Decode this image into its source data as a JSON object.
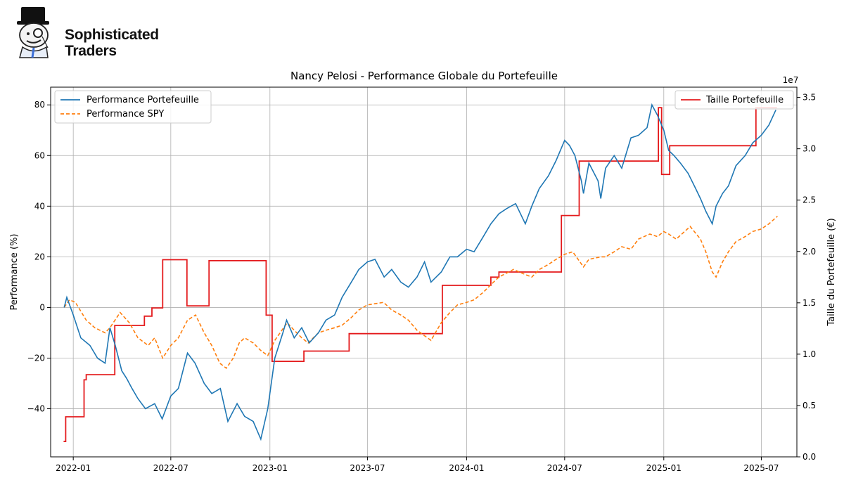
{
  "brand": {
    "line1": "Sophisticated",
    "line2": "Traders",
    "logo_icon": "monocle-top-hat-mascot-icon"
  },
  "chart_data": {
    "type": "line",
    "title": "Nancy Pelosi - Performance Globale du Portefeuille",
    "xlabel": "",
    "ylabel": "Performance (%)",
    "y2label": "Taille du Portefeuille (€)",
    "y2_offset_text": "1e7",
    "xlim": [
      "2021-11-20",
      "2025-09-05"
    ],
    "ylim": [
      -59,
      87
    ],
    "y2lim": [
      0.0,
      3.6
    ],
    "x_ticks": [
      "2022-01",
      "2022-07",
      "2023-01",
      "2023-07",
      "2024-01",
      "2024-07",
      "2025-01",
      "2025-07"
    ],
    "y_ticks": [
      "80",
      "60",
      "40",
      "20",
      "0",
      "−20",
      "−40"
    ],
    "y2_ticks": [
      "3.5",
      "3.0",
      "2.5",
      "2.0",
      "1.5",
      "1.0",
      "0.5",
      "0.0"
    ],
    "grid": true,
    "legend_left": {
      "placement": "top-left",
      "entries": [
        "Performance Portefeuille",
        "Performance SPY"
      ]
    },
    "legend_right": {
      "placement": "top-right",
      "entries": [
        "Taille Portefeuille"
      ]
    },
    "colors": {
      "portfolio": "#1f77b4",
      "spy": "#ff7f0e",
      "size": "#e41a1c",
      "grid": "#b0b0b0"
    },
    "series": [
      {
        "name": "Performance Portefeuille",
        "axis": "left",
        "style": "solid",
        "x": [
          "2021-12-15",
          "2021-12-20",
          "2022-01-01",
          "2022-01-15",
          "2022-02-01",
          "2022-02-15",
          "2022-03-01",
          "2022-03-10",
          "2022-03-20",
          "2022-04-01",
          "2022-04-10",
          "2022-04-20",
          "2022-05-01",
          "2022-05-15",
          "2022-06-01",
          "2022-06-15",
          "2022-07-01",
          "2022-07-15",
          "2022-08-01",
          "2022-08-15",
          "2022-09-01",
          "2022-09-15",
          "2022-10-01",
          "2022-10-15",
          "2022-11-01",
          "2022-11-15",
          "2022-12-01",
          "2022-12-15",
          "2022-12-28",
          "2023-01-10",
          "2023-01-25",
          "2023-02-01",
          "2023-02-15",
          "2023-03-01",
          "2023-03-15",
          "2023-04-01",
          "2023-04-15",
          "2023-05-01",
          "2023-05-15",
          "2023-06-01",
          "2023-06-15",
          "2023-07-01",
          "2023-07-15",
          "2023-08-01",
          "2023-08-15",
          "2023-09-01",
          "2023-09-15",
          "2023-10-01",
          "2023-10-15",
          "2023-10-27",
          "2023-11-15",
          "2023-12-01",
          "2023-12-15",
          "2024-01-01",
          "2024-01-15",
          "2024-02-01",
          "2024-02-15",
          "2024-03-01",
          "2024-03-15",
          "2024-04-01",
          "2024-04-19",
          "2024-05-01",
          "2024-05-15",
          "2024-06-01",
          "2024-06-15",
          "2024-07-01",
          "2024-07-10",
          "2024-07-20",
          "2024-08-01",
          "2024-08-05",
          "2024-08-15",
          "2024-09-01",
          "2024-09-06",
          "2024-09-15",
          "2024-10-01",
          "2024-10-15",
          "2024-11-01",
          "2024-11-15",
          "2024-12-01",
          "2024-12-10",
          "2024-12-20",
          "2025-01-01",
          "2025-01-10",
          "2025-01-20",
          "2025-02-01",
          "2025-02-15",
          "2025-03-01",
          "2025-03-10",
          "2025-03-20",
          "2025-04-01",
          "2025-04-08",
          "2025-04-20",
          "2025-05-01",
          "2025-05-15",
          "2025-06-01",
          "2025-06-15",
          "2025-07-01",
          "2025-07-15",
          "2025-07-28"
        ],
        "values": [
          0,
          4,
          -3,
          -12,
          -15,
          -20,
          -22,
          -8,
          -15,
          -25,
          -28,
          -32,
          -36,
          -40,
          -38,
          -44,
          -35,
          -32,
          -18,
          -22,
          -30,
          -34,
          -32,
          -45,
          -38,
          -43,
          -45,
          -52,
          -40,
          -20,
          -10,
          -5,
          -12,
          -8,
          -14,
          -10,
          -5,
          -3,
          4,
          10,
          15,
          18,
          19,
          12,
          15,
          10,
          8,
          12,
          18,
          10,
          14,
          20,
          20,
          23,
          22,
          28,
          33,
          37,
          39,
          41,
          33,
          40,
          47,
          52,
          58,
          66,
          64,
          60,
          50,
          45,
          57,
          50,
          43,
          55,
          60,
          55,
          67,
          68,
          71,
          80,
          76,
          70,
          62,
          60,
          57,
          53,
          47,
          43,
          38,
          33,
          40,
          45,
          48,
          56,
          60,
          65,
          68,
          72,
          78
        ]
      },
      {
        "name": "Performance SPY",
        "axis": "left",
        "style": "dashed",
        "x": [
          "2021-12-15",
          "2021-12-25",
          "2022-01-05",
          "2022-01-25",
          "2022-02-10",
          "2022-03-01",
          "2022-03-10",
          "2022-03-29",
          "2022-04-15",
          "2022-05-01",
          "2022-05-20",
          "2022-06-01",
          "2022-06-16",
          "2022-07-01",
          "2022-07-15",
          "2022-08-01",
          "2022-08-16",
          "2022-09-01",
          "2022-09-15",
          "2022-09-30",
          "2022-10-12",
          "2022-10-25",
          "2022-11-05",
          "2022-11-15",
          "2022-12-01",
          "2022-12-15",
          "2022-12-28",
          "2023-01-10",
          "2023-02-02",
          "2023-02-15",
          "2023-03-01",
          "2023-03-13",
          "2023-04-01",
          "2023-04-15",
          "2023-05-01",
          "2023-05-15",
          "2023-06-01",
          "2023-06-15",
          "2023-07-01",
          "2023-07-31",
          "2023-08-15",
          "2023-09-01",
          "2023-09-15",
          "2023-10-01",
          "2023-10-27",
          "2023-11-15",
          "2023-12-01",
          "2023-12-15",
          "2024-01-01",
          "2024-01-15",
          "2024-02-01",
          "2024-02-15",
          "2024-03-01",
          "2024-03-28",
          "2024-04-19",
          "2024-05-01",
          "2024-05-15",
          "2024-06-01",
          "2024-06-15",
          "2024-07-01",
          "2024-07-16",
          "2024-08-05",
          "2024-08-15",
          "2024-09-06",
          "2024-09-15",
          "2024-10-01",
          "2024-10-15",
          "2024-11-01",
          "2024-11-15",
          "2024-12-06",
          "2024-12-20",
          "2025-01-01",
          "2025-01-10",
          "2025-01-24",
          "2025-02-19",
          "2025-03-10",
          "2025-03-20",
          "2025-04-01",
          "2025-04-08",
          "2025-04-20",
          "2025-05-01",
          "2025-05-15",
          "2025-06-01",
          "2025-06-15",
          "2025-07-01",
          "2025-07-15",
          "2025-07-31"
        ],
        "values": [
          0,
          3,
          2,
          -5,
          -8,
          -10,
          -8,
          -2,
          -6,
          -12,
          -15,
          -12,
          -20,
          -15,
          -12,
          -5,
          -3,
          -10,
          -15,
          -22,
          -24,
          -20,
          -14,
          -12,
          -14,
          -17,
          -19,
          -13,
          -6,
          -9,
          -12,
          -14,
          -10,
          -9,
          -8,
          -7,
          -4,
          -1,
          1,
          2,
          -1,
          -3,
          -5,
          -9,
          -13,
          -6,
          -2,
          1,
          2,
          3,
          6,
          9,
          12,
          15,
          13,
          12,
          15,
          17,
          19,
          21,
          22,
          16,
          19,
          20,
          20,
          22,
          24,
          23,
          27,
          29,
          28,
          30,
          29,
          27,
          32,
          27,
          22,
          14,
          12,
          18,
          22,
          26,
          28,
          30,
          31,
          33,
          36
        ]
      },
      {
        "name": "Taille Portefeuille",
        "axis": "right",
        "style": "step",
        "x": [
          "2021-12-14",
          "2021-12-18",
          "2022-01-21",
          "2022-01-25",
          "2022-03-19",
          "2022-05-13",
          "2022-05-27",
          "2022-06-16",
          "2022-07-31",
          "2022-09-10",
          "2022-12-25",
          "2023-01-05",
          "2023-03-05",
          "2023-05-28",
          "2023-07-10",
          "2023-11-17",
          "2024-02-15",
          "2024-03-01",
          "2024-06-25",
          "2024-07-28",
          "2024-09-15",
          "2024-12-22",
          "2024-12-28",
          "2025-01-12",
          "2025-06-21",
          "2025-07-30"
        ],
        "values": [
          0.15,
          0.39,
          0.75,
          0.8,
          1.28,
          1.37,
          1.45,
          1.92,
          1.47,
          1.91,
          1.38,
          0.93,
          1.03,
          1.2,
          1.2,
          1.67,
          1.75,
          1.8,
          2.35,
          2.88,
          2.88,
          3.4,
          2.75,
          3.03,
          3.4,
          3.4
        ]
      }
    ]
  }
}
